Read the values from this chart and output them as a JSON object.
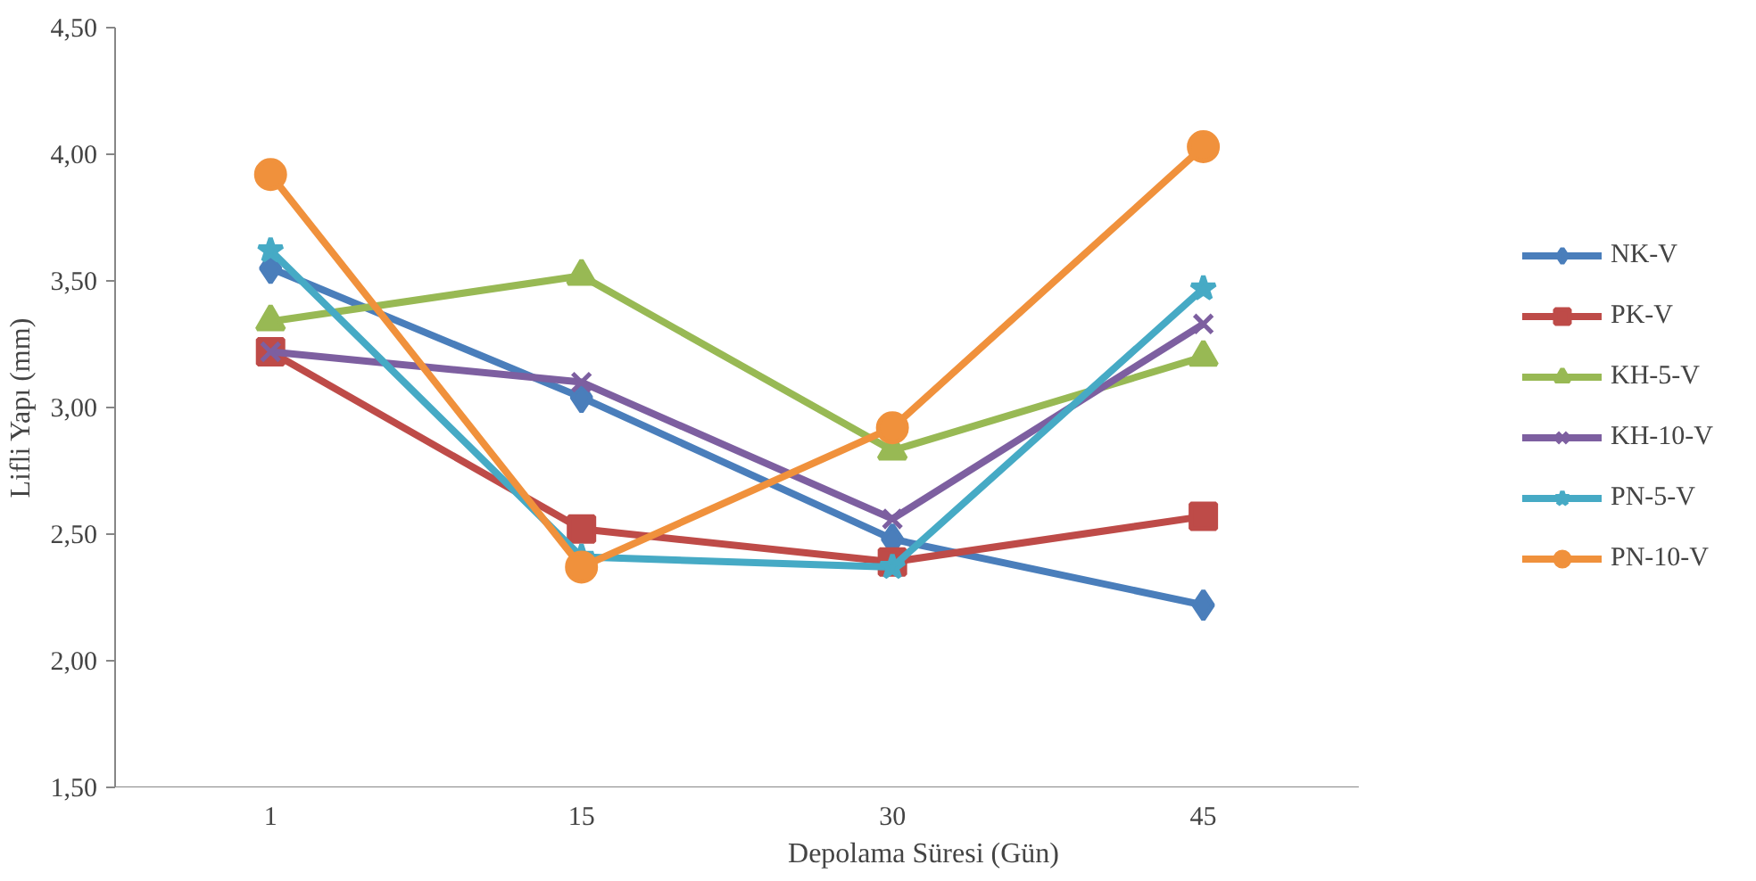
{
  "chart_data": {
    "type": "line",
    "xlabel": "Depolama Süresi (Gün)",
    "ylabel": "Lifli Yapı (mm)",
    "categories": [
      "1",
      "15",
      "30",
      "45"
    ],
    "ylim": [
      1.5,
      4.5
    ],
    "yticks": [
      {
        "value": 1.5,
        "label": "1,50"
      },
      {
        "value": 2.0,
        "label": "2,00"
      },
      {
        "value": 2.5,
        "label": "2,50"
      },
      {
        "value": 3.0,
        "label": "3,00"
      },
      {
        "value": 3.5,
        "label": "3,50"
      },
      {
        "value": 4.0,
        "label": "4,00"
      },
      {
        "value": 4.5,
        "label": "4,50"
      }
    ],
    "grid": false,
    "legend": "right",
    "series": [
      {
        "name": "NK-V",
        "color": "#4a7ebb",
        "marker": "diamond",
        "values": [
          3.55,
          3.04,
          2.48,
          2.22
        ]
      },
      {
        "name": "PK-V",
        "color": "#be4b48",
        "marker": "square",
        "values": [
          3.22,
          2.52,
          2.39,
          2.57
        ]
      },
      {
        "name": "KH-5-V",
        "color": "#98b954",
        "marker": "triangle",
        "values": [
          3.34,
          3.52,
          2.83,
          3.2
        ]
      },
      {
        "name": "KH-10-V",
        "color": "#7d5fa0",
        "marker": "cross",
        "values": [
          3.22,
          3.1,
          2.56,
          3.33
        ]
      },
      {
        "name": "PN-5-V",
        "color": "#46aac5",
        "marker": "star",
        "values": [
          3.62,
          2.41,
          2.37,
          3.47
        ]
      },
      {
        "name": "PN-10-V",
        "color": "#f0913c",
        "marker": "circle",
        "values": [
          3.92,
          2.37,
          2.92,
          4.03
        ]
      }
    ]
  }
}
